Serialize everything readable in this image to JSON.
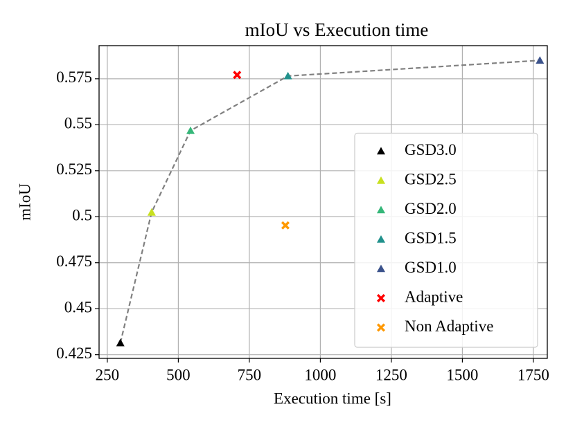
{
  "chart_data": {
    "type": "scatter",
    "title": "mIoU vs Execution time",
    "x_label": "Execution time [s]",
    "y_label": "mIoU",
    "xlim": [
      221,
      1799
    ],
    "xticks": [
      250,
      500,
      750,
      1000,
      1250,
      1500,
      1750
    ],
    "ylim": [
      0.423,
      0.593
    ],
    "yticks": [
      0.425,
      0.45,
      0.475,
      0.5,
      0.525,
      0.55,
      0.575
    ],
    "grid": true,
    "legend": "lower right",
    "trend_line": {
      "color": "#808080",
      "style": "dashed",
      "marker": "triangle"
    },
    "series": [
      {
        "name": "GSD3.0",
        "color": "#000000",
        "marker": "triangle",
        "x": [
          296
        ],
        "values": [
          0.4314
        ]
      },
      {
        "name": "GSD2.5",
        "color": "#c8e020",
        "marker": "triangle",
        "x": [
          406
        ],
        "values": [
          0.5024
        ]
      },
      {
        "name": "GSD2.0",
        "color": "#35b779",
        "marker": "triangle",
        "x": [
          543
        ],
        "values": [
          0.5468
        ]
      },
      {
        "name": "GSD1.5",
        "color": "#21918c",
        "marker": "triangle",
        "x": [
          886
        ],
        "values": [
          0.5765
        ]
      },
      {
        "name": "GSD1.0",
        "color": "#3b528b",
        "marker": "triangle",
        "x": [
          1773
        ],
        "values": [
          0.585
        ]
      },
      {
        "name": "Adaptive",
        "color": "#ff0000",
        "marker": "x",
        "x": [
          707
        ],
        "values": [
          0.5771
        ]
      },
      {
        "name": "Non Adaptive",
        "color": "#ff9900",
        "marker": "x",
        "x": [
          877
        ],
        "values": [
          0.4953
        ]
      }
    ]
  }
}
